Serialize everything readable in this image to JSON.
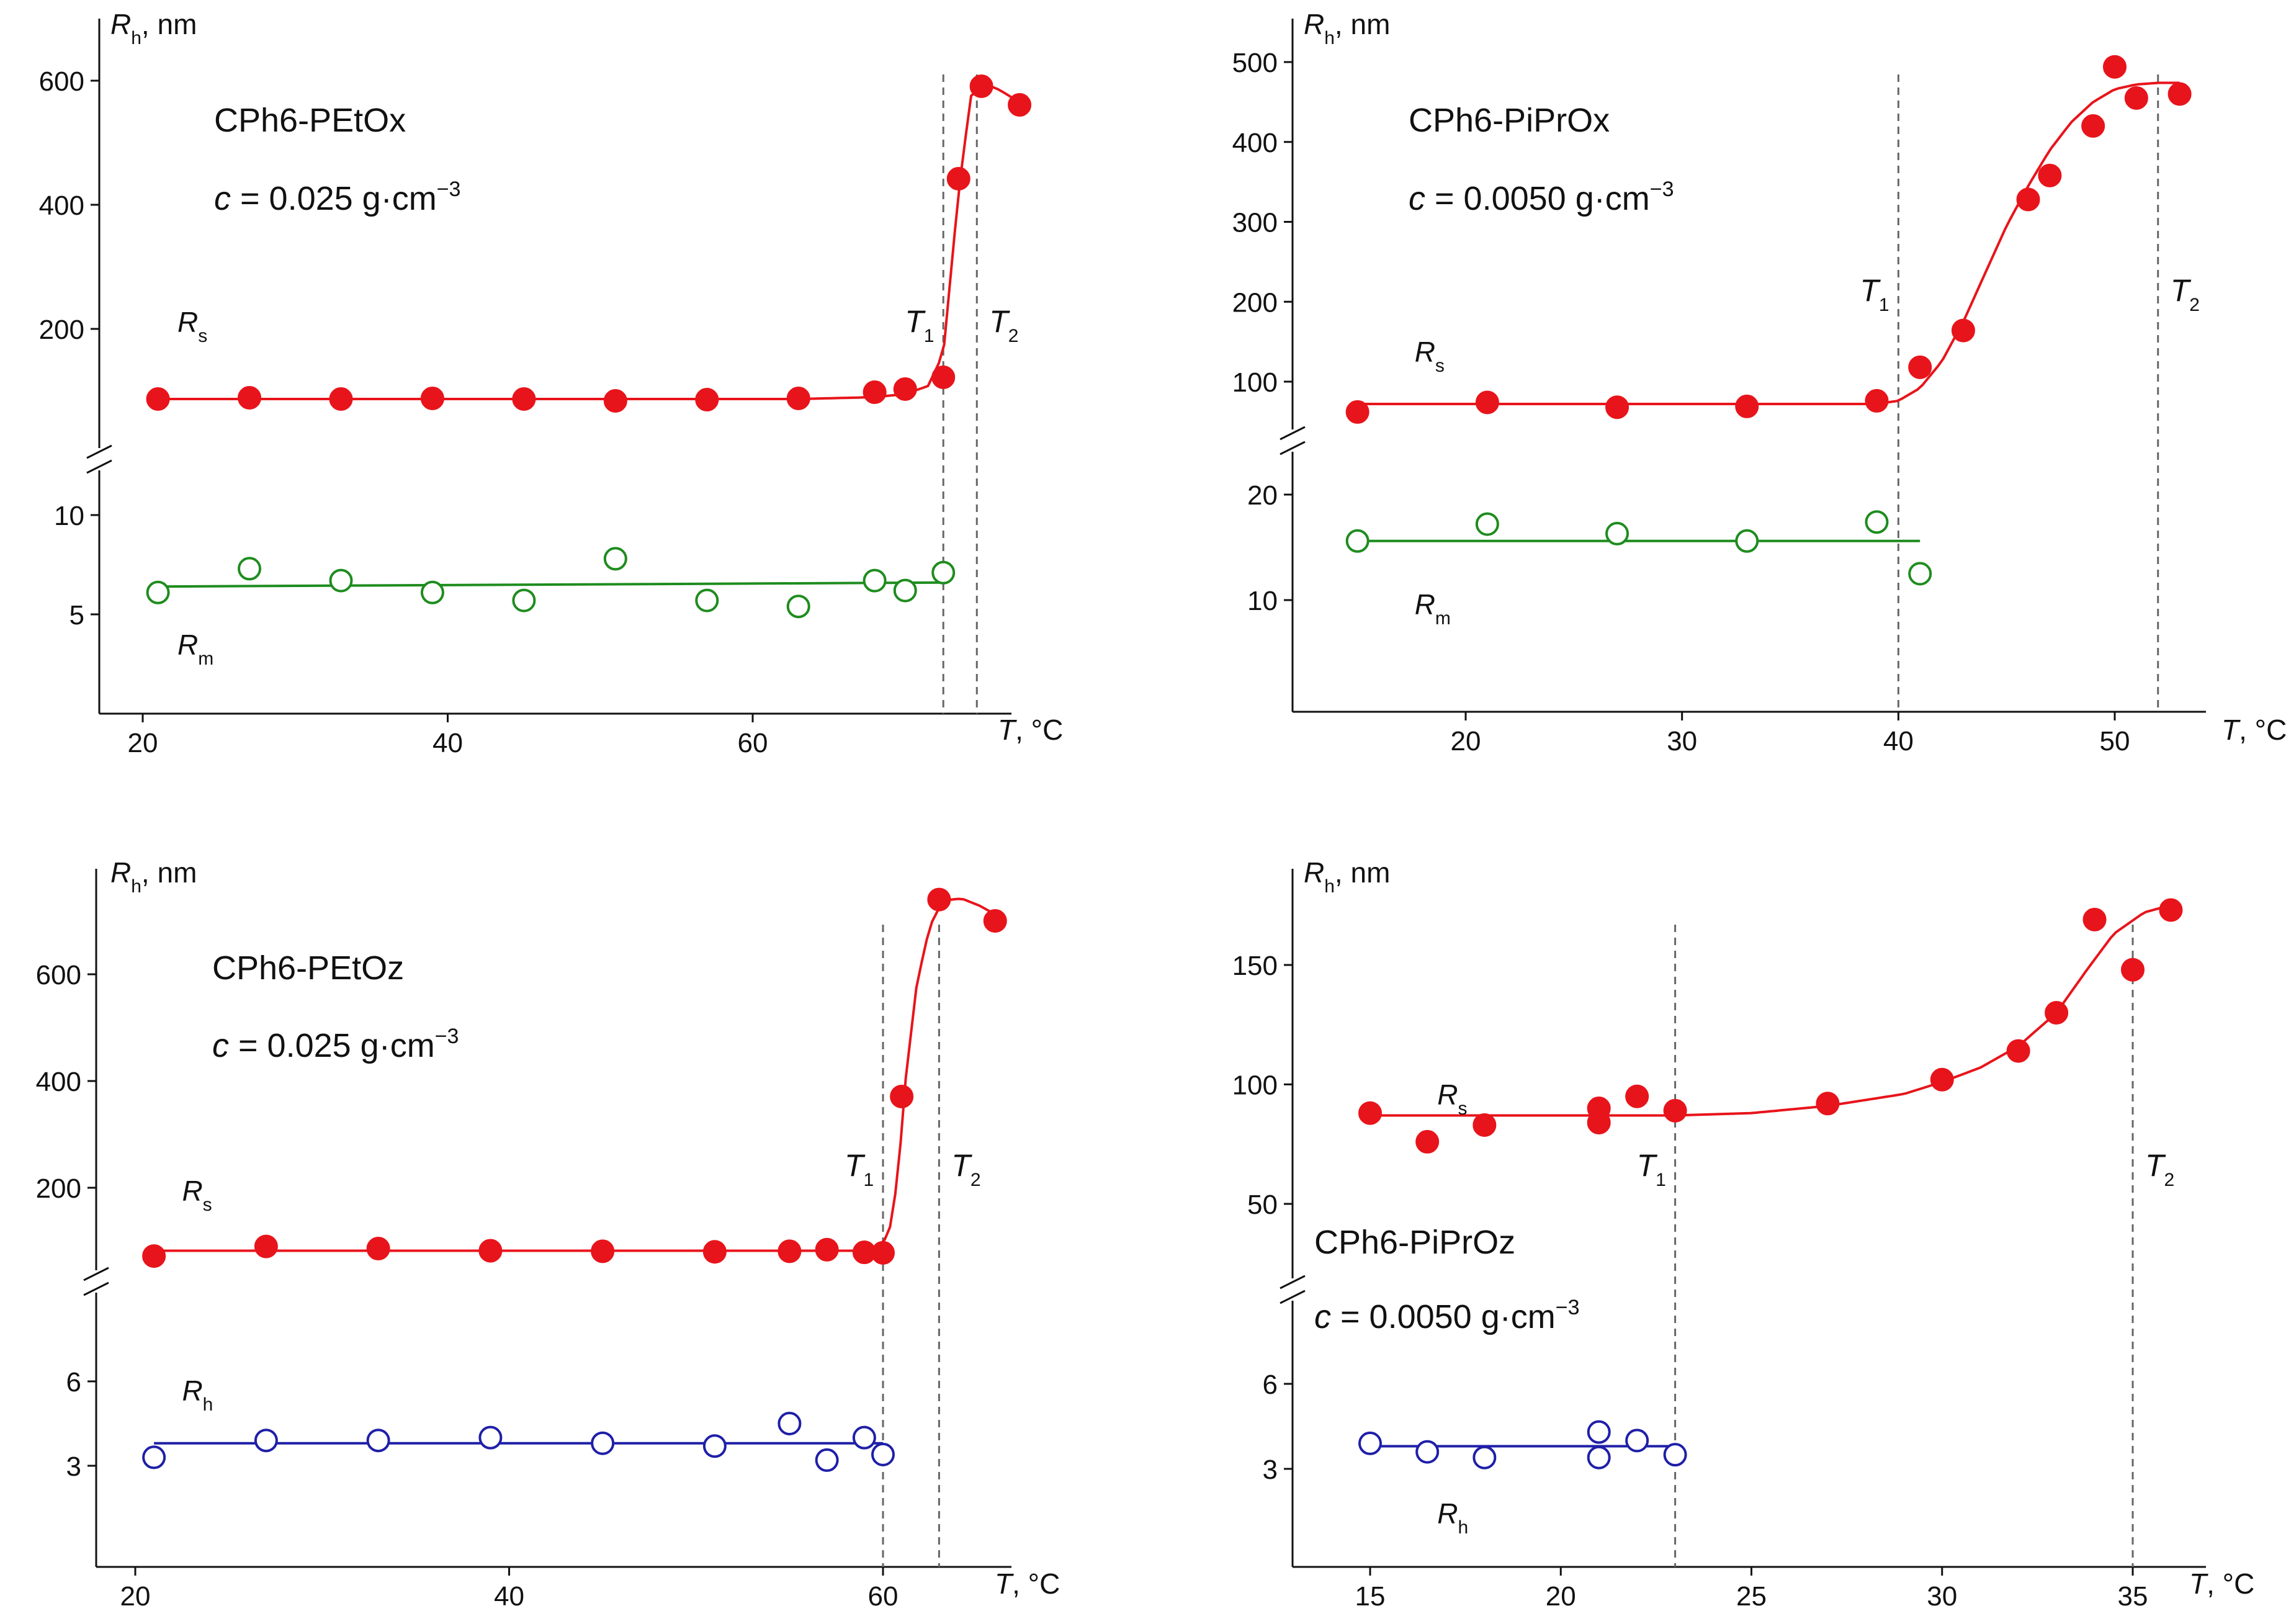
{
  "figure": {
    "panels": [
      {
        "id": "a",
        "polymer": "CPh6-PEtOx",
        "conc_c": "c",
        "conc_rest": " = 0.025 g·cm",
        "conc_exp": "−3",
        "ylabel_main": "R",
        "ylabel_sub": "h",
        "ylabel_unit": ", nm",
        "xlabel_main": "T",
        "xlabel_unit": ", °C",
        "x_ticks": [
          20,
          40,
          60
        ],
        "upper_ticks": [
          200,
          400,
          600
        ],
        "lower_ticks": [
          5,
          10
        ],
        "guides": [
          {
            "label": "T",
            "sub": "1",
            "x": 72.5
          },
          {
            "label": "T",
            "sub": "2",
            "x": 74.7
          }
        ],
        "series_upper": {
          "name": "R",
          "sub": "s",
          "color": "#e8141b",
          "filled": true,
          "x": [
            21,
            27,
            33,
            39,
            45,
            51,
            57,
            63,
            68,
            70,
            72.5,
            73.5,
            75,
            77.5
          ],
          "y": [
            87,
            89,
            87,
            88,
            87,
            84,
            86,
            88,
            98,
            103,
            122,
            442,
            591,
            561
          ],
          "fit_x": [
            21,
            63,
            68,
            70,
            71.5,
            72.5,
            73.5,
            74.3,
            75.2,
            76.2,
            77.5
          ],
          "fit_y": [
            87,
            87,
            90,
            95,
            108,
            160,
            420,
            575,
            595,
            585,
            565
          ]
        },
        "series_lower": {
          "name": "R",
          "sub": "m",
          "color": "#1e8c1e",
          "filled": false,
          "x": [
            21,
            27,
            33,
            39,
            45,
            51,
            57,
            63,
            68,
            70,
            72.5
          ],
          "y": [
            6.1,
            7.3,
            6.7,
            6.1,
            5.7,
            7.8,
            5.7,
            5.4,
            6.7,
            6.2,
            7.1
          ],
          "fit_x": [
            21,
            72.5
          ],
          "fit_y": [
            6.4,
            6.6
          ]
        }
      },
      {
        "id": "b",
        "polymer": "CPh6-PiPrOx",
        "conc_c": "c",
        "conc_rest": " = 0.0050 g·cm",
        "conc_exp": "−3",
        "ylabel_main": "R",
        "ylabel_sub": "h",
        "ylabel_unit": ", nm",
        "xlabel_main": "T",
        "xlabel_unit": ", °C",
        "x_ticks": [
          20,
          30,
          40,
          50
        ],
        "upper_ticks": [
          100,
          200,
          300,
          400,
          500
        ],
        "lower_ticks": [
          10,
          20
        ],
        "guides": [
          {
            "label": "T",
            "sub": "1",
            "x": 40
          },
          {
            "label": "T",
            "sub": "2",
            "x": 52
          }
        ],
        "series_upper": {
          "name": "R",
          "sub": "s",
          "color": "#e8141b",
          "filled": true,
          "x": [
            15,
            21,
            27,
            33,
            39,
            41,
            43,
            46,
            47,
            49,
            50,
            51,
            53
          ],
          "y": [
            62,
            74,
            68,
            69,
            76,
            118,
            164,
            328,
            358,
            420,
            494,
            455,
            460
          ],
          "fit_x": [
            15,
            39,
            40,
            41,
            42,
            43,
            44,
            45,
            46,
            47,
            48,
            49,
            50,
            51,
            52,
            53
          ],
          "fit_y": [
            72,
            72,
            76,
            92,
            125,
            175,
            235,
            295,
            345,
            390,
            425,
            450,
            466,
            472,
            474,
            474
          ]
        },
        "series_lower": {
          "name": "R",
          "sub": "m",
          "color": "#1e8c1e",
          "filled": false,
          "x": [
            15,
            21,
            27,
            33,
            39,
            41
          ],
          "y": [
            15.6,
            17.2,
            16.3,
            15.6,
            17.4,
            12.5
          ],
          "fit_x": [
            15,
            41
          ],
          "fit_y": [
            15.6,
            15.6
          ]
        }
      },
      {
        "id": "c",
        "polymer": "CPh6-PEtOz",
        "conc_c": "c",
        "conc_rest": " = 0.025 g·cm",
        "conc_exp": "−3",
        "ylabel_main": "R",
        "ylabel_sub": "h",
        "ylabel_unit": ", nm",
        "xlabel_main": "T",
        "xlabel_unit": ", °C",
        "x_ticks": [
          20,
          40,
          60
        ],
        "upper_ticks": [
          200,
          400,
          600
        ],
        "lower_ticks": [
          3,
          6
        ],
        "guides": [
          {
            "label": "T",
            "sub": "1",
            "x": 60
          },
          {
            "label": "T",
            "sub": "2",
            "x": 63
          }
        ],
        "series_upper": {
          "name": "R",
          "sub": "s",
          "color": "#e8141b",
          "filled": true,
          "x": [
            21,
            27,
            33,
            39,
            45,
            51,
            55,
            57,
            59,
            60,
            61,
            63,
            66
          ],
          "y": [
            72,
            90,
            86,
            82,
            81,
            80,
            81,
            84,
            79,
            78,
            371,
            740,
            700
          ],
          "fit_x": [
            21,
            59.5,
            60.3,
            60.8,
            61.2,
            61.8,
            62.5,
            63.2,
            64.2,
            65.2,
            66
          ],
          "fit_y": [
            82,
            82,
            110,
            220,
            400,
            580,
            690,
            738,
            742,
            728,
            712
          ]
        },
        "series_lower": {
          "name": "R",
          "sub": "h",
          "color": "#1f1fa8",
          "filled": false,
          "x": [
            21,
            27,
            33,
            39,
            45,
            51,
            55,
            57,
            59,
            60
          ],
          "y": [
            3.3,
            3.9,
            3.9,
            4.0,
            3.8,
            3.7,
            4.5,
            3.2,
            4.0,
            3.4
          ],
          "fit_x": [
            21,
            60
          ],
          "fit_y": [
            3.8,
            3.8
          ]
        }
      },
      {
        "id": "d",
        "polymer": "CPh6-PiPrOz",
        "conc_c": "c",
        "conc_rest": " = 0.0050 g·cm",
        "conc_exp": "−3",
        "ylabel_main": "R",
        "ylabel_sub": "h",
        "ylabel_unit": ", nm",
        "xlabel_main": "T",
        "xlabel_unit": ", °C",
        "x_ticks": [
          15,
          20,
          25,
          30,
          35
        ],
        "upper_ticks": [
          50,
          100,
          150
        ],
        "lower_ticks": [
          3,
          6
        ],
        "guides": [
          {
            "label": "T",
            "sub": "1",
            "x": 23
          },
          {
            "label": "T",
            "sub": "2",
            "x": 35
          }
        ],
        "series_upper": {
          "name": "R",
          "sub": "s",
          "color": "#e8141b",
          "filled": true,
          "x": [
            15,
            16.5,
            18,
            21,
            21,
            22,
            23,
            27,
            30,
            32,
            33,
            34,
            35,
            36
          ],
          "y": [
            88,
            76,
            83,
            90,
            84,
            95,
            89,
            92,
            102,
            114,
            130,
            169,
            148,
            173
          ],
          "fit_x": [
            15,
            23,
            25,
            27,
            29,
            30,
            31,
            32,
            33,
            33.8,
            34.5,
            35.3,
            36
          ],
          "fit_y": [
            87,
            87,
            88,
            91,
            96,
            101,
            107,
            116,
            130,
            148,
            163,
            172,
            175
          ]
        },
        "series_lower": {
          "name": "R",
          "sub": "h",
          "color": "#1f1fa8",
          "filled": false,
          "x": [
            15,
            16.5,
            18,
            21,
            21,
            22,
            23
          ],
          "y": [
            3.9,
            3.6,
            3.4,
            4.3,
            3.4,
            4.0,
            3.5
          ],
          "fit_x": [
            15,
            23
          ],
          "fit_y": [
            3.8,
            3.8
          ]
        }
      }
    ]
  },
  "chart_data": [
    {
      "type": "scatter",
      "title": "CPh6-PEtOx, c = 0.025 g·cm−3",
      "xlabel": "T, °C",
      "ylabel": "Rh, nm",
      "series": [
        {
          "name": "Rs",
          "x": [
            21,
            27,
            33,
            39,
            45,
            51,
            57,
            63,
            68,
            70,
            72.5,
            73.5,
            75,
            77.5
          ],
          "y": [
            87,
            89,
            87,
            88,
            87,
            84,
            86,
            88,
            98,
            103,
            122,
            442,
            591,
            561
          ]
        },
        {
          "name": "Rm",
          "x": [
            21,
            27,
            33,
            39,
            45,
            51,
            57,
            63,
            68,
            70,
            72.5
          ],
          "y": [
            6.1,
            7.3,
            6.7,
            6.1,
            5.7,
            7.8,
            5.7,
            5.4,
            6.7,
            6.2,
            7.1
          ]
        }
      ],
      "markers": {
        "T1": 72.5,
        "T2": 74.7
      }
    },
    {
      "type": "scatter",
      "title": "CPh6-PiPrOx, c = 0.0050 g·cm−3",
      "xlabel": "T, °C",
      "ylabel": "Rh, nm",
      "series": [
        {
          "name": "Rs",
          "x": [
            15,
            21,
            27,
            33,
            39,
            41,
            43,
            46,
            47,
            49,
            50,
            51,
            53
          ],
          "y": [
            62,
            74,
            68,
            69,
            76,
            118,
            164,
            328,
            358,
            420,
            494,
            455,
            460
          ]
        },
        {
          "name": "Rm",
          "x": [
            15,
            21,
            27,
            33,
            39,
            41
          ],
          "y": [
            15.6,
            17.2,
            16.3,
            15.6,
            17.4,
            12.5
          ]
        }
      ],
      "markers": {
        "T1": 40,
        "T2": 52
      }
    },
    {
      "type": "scatter",
      "title": "CPh6-PEtOz, c = 0.025 g·cm−3",
      "xlabel": "T, °C",
      "ylabel": "Rh, nm",
      "series": [
        {
          "name": "Rs",
          "x": [
            21,
            27,
            33,
            39,
            45,
            51,
            55,
            57,
            59,
            60,
            61,
            63,
            66
          ],
          "y": [
            72,
            90,
            86,
            82,
            81,
            80,
            81,
            84,
            79,
            78,
            371,
            740,
            700
          ]
        },
        {
          "name": "Rh",
          "x": [
            21,
            27,
            33,
            39,
            45,
            51,
            55,
            57,
            59,
            60
          ],
          "y": [
            3.3,
            3.9,
            3.9,
            4.0,
            3.8,
            3.7,
            4.5,
            3.2,
            4.0,
            3.4
          ]
        }
      ],
      "markers": {
        "T1": 60,
        "T2": 63
      }
    },
    {
      "type": "scatter",
      "title": "CPh6-PiPrOz, c = 0.0050 g·cm−3",
      "xlabel": "T, °C",
      "ylabel": "Rh, nm",
      "series": [
        {
          "name": "Rs",
          "x": [
            15,
            16.5,
            18,
            21,
            21,
            22,
            23,
            27,
            30,
            32,
            33,
            34,
            35,
            36
          ],
          "y": [
            88,
            76,
            83,
            90,
            84,
            95,
            89,
            92,
            102,
            114,
            130,
            169,
            148,
            173
          ]
        },
        {
          "name": "Rh",
          "x": [
            15,
            16.5,
            18,
            21,
            21,
            22,
            23
          ],
          "y": [
            3.9,
            3.6,
            3.4,
            4.3,
            3.4,
            4.0,
            3.5
          ]
        }
      ],
      "markers": {
        "T1": 23,
        "T2": 35
      }
    }
  ]
}
